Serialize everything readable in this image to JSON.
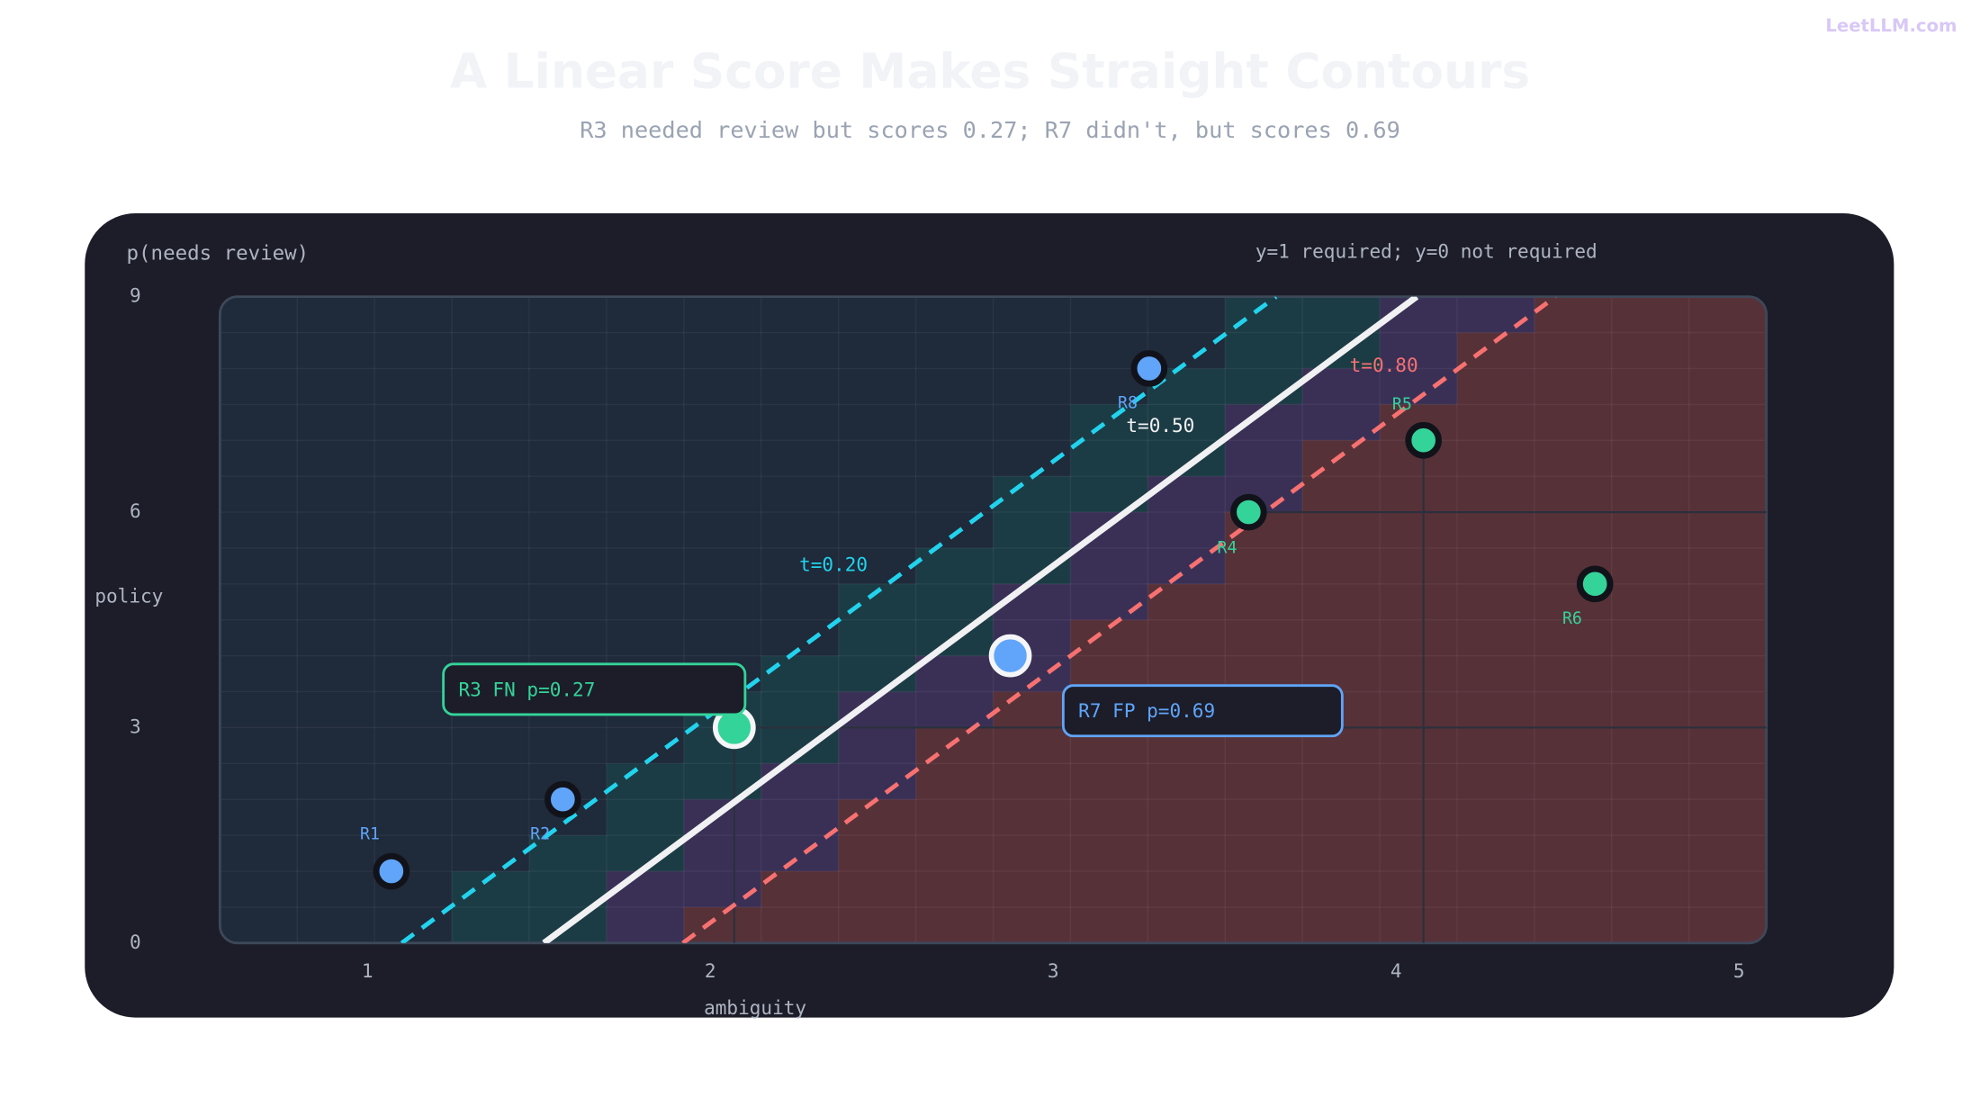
{
  "brand": "LeetLLM.com",
  "chart_data": {
    "type": "scatter",
    "title": "A Linear Score Makes Straight Contours",
    "subtitle": "R3 needed review but scores 0.27; R7 didn't, but scores 0.69",
    "score_label": "p(needs review)",
    "legend_note": "y=1 required; y=0 not required",
    "x_label": "ambiguity",
    "y_label": "policy",
    "xlim": [
      0.57,
      5.08
    ],
    "ylim": [
      0,
      9
    ],
    "xticks": [
      1,
      2,
      3,
      4,
      5
    ],
    "yticks": [
      0,
      3,
      6,
      9
    ],
    "contours": [
      {
        "name": "t=0.20",
        "color": "#22d3ee",
        "dashed": true,
        "x": [
          1.1,
          3.65
        ],
        "values": [
          0,
          9
        ]
      },
      {
        "name": "t=0.50",
        "color": "#f1f1f4",
        "dashed": false,
        "x": [
          1.515,
          4.06
        ],
        "values": [
          0,
          9
        ]
      },
      {
        "name": "t=0.80",
        "color": "#f87171",
        "dashed": true,
        "x": [
          1.92,
          4.465
        ],
        "values": [
          0,
          9
        ]
      }
    ],
    "band_colors": [
      "#1f2a3a",
      "#1c3c45",
      "#3a3056",
      "#573138"
    ],
    "points": [
      {
        "label": "R1",
        "x": 1.07,
        "y": 1.0,
        "color": "#60a5fa"
      },
      {
        "label": "R2",
        "x": 1.57,
        "y": 2.0,
        "color": "#60a5fa"
      },
      {
        "label": "R3",
        "x": 2.07,
        "y": 3.0,
        "color": "#34d399"
      },
      {
        "label": "R7",
        "x": 2.875,
        "y": 4.0,
        "color": "#60a5fa"
      },
      {
        "label": "R8",
        "x": 3.28,
        "y": 8.0,
        "color": "#60a5fa"
      },
      {
        "label": "R4",
        "x": 3.57,
        "y": 6.0,
        "color": "#34d399"
      },
      {
        "label": "R5",
        "x": 4.08,
        "y": 7.0,
        "color": "#34d399"
      },
      {
        "label": "R6",
        "x": 4.58,
        "y": 5.0,
        "color": "#34d399"
      }
    ],
    "annotations": [
      {
        "text": "R3 FN p=0.27",
        "color": "#34d399"
      },
      {
        "text": "R7 FP p=0.69",
        "color": "#60a5fa"
      }
    ]
  }
}
